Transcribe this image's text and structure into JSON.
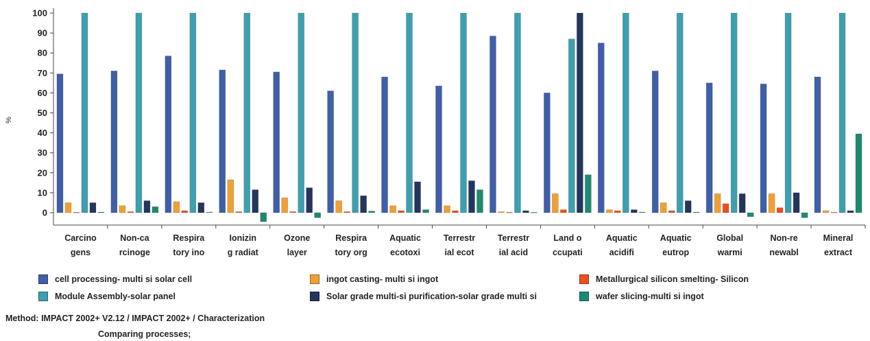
{
  "chart_data": {
    "type": "bar",
    "ylabel": "%",
    "ylim": [
      -5,
      100
    ],
    "yticks": [
      0,
      10,
      20,
      30,
      40,
      50,
      60,
      70,
      80,
      90,
      100
    ],
    "grid": false,
    "legend_position": "bottom",
    "categories": [
      [
        "Carcino",
        "gens"
      ],
      [
        "Non-ca",
        "rcinoge"
      ],
      [
        "Respira",
        "tory ino"
      ],
      [
        "Ionizin",
        "g radiat"
      ],
      [
        "Ozone",
        "layer"
      ],
      [
        "Respira",
        "tory org"
      ],
      [
        "Aquatic",
        "ecotoxi"
      ],
      [
        "Terrestr",
        "ial ecot"
      ],
      [
        "Terrestr",
        "ial acid"
      ],
      [
        "Land o",
        "ccupati"
      ],
      [
        "Aquatic",
        "acidifi"
      ],
      [
        "Aquatic",
        "eutrop"
      ],
      [
        "Global",
        "warmi"
      ],
      [
        "Non-re",
        "newabl"
      ],
      [
        "Mineral",
        "extract"
      ]
    ],
    "series": [
      {
        "name": "cell processing- multi si solar cell",
        "color": "#3f5fa8",
        "values": [
          69.5,
          71,
          78.5,
          71.5,
          70.5,
          61,
          68,
          63.5,
          88.5,
          60,
          85,
          71,
          65,
          64.5,
          68
        ]
      },
      {
        "name": "ingot casting- multi si ingot",
        "color": "#f0a033",
        "values": [
          5,
          3.5,
          5.5,
          16.5,
          7.5,
          6,
          3.5,
          3.5,
          0.5,
          9.5,
          1.5,
          5,
          9.5,
          9.5,
          1
        ]
      },
      {
        "name": "Metallurgical silicon smelting- Silicon",
        "color": "#e8521e",
        "values": [
          0.2,
          0.5,
          1,
          0.5,
          0.5,
          0.5,
          1,
          1,
          0.2,
          1.5,
          1,
          1,
          4.5,
          2.5,
          0.2
        ]
      },
      {
        "name": "Module Assembly-solar panel",
        "color": "#3e9fb0",
        "values": [
          100,
          100,
          100,
          100,
          100,
          100,
          100,
          100,
          100,
          87,
          100,
          100,
          100,
          100,
          100
        ]
      },
      {
        "name": "Solar grade multi-si purification-solar grade multi si",
        "color": "#24355e",
        "values": [
          5,
          6,
          5,
          11.5,
          12.5,
          8.5,
          15.5,
          16,
          1,
          100,
          1.5,
          6,
          9.5,
          10,
          1
        ]
      },
      {
        "name": "wafer slicing-multi si ingot",
        "color": "#1e8a6e",
        "values": [
          0.3,
          3,
          0.3,
          -4.5,
          -2.5,
          0.8,
          1.5,
          11.5,
          0.2,
          19,
          0.3,
          0.3,
          -2,
          -2.5,
          39.5
        ]
      }
    ]
  },
  "footer": {
    "method": "Method: IMPACT 2002+ V2.12 / IMPACT 2002+ / Characterization",
    "comparing": "Comparing processes;"
  }
}
